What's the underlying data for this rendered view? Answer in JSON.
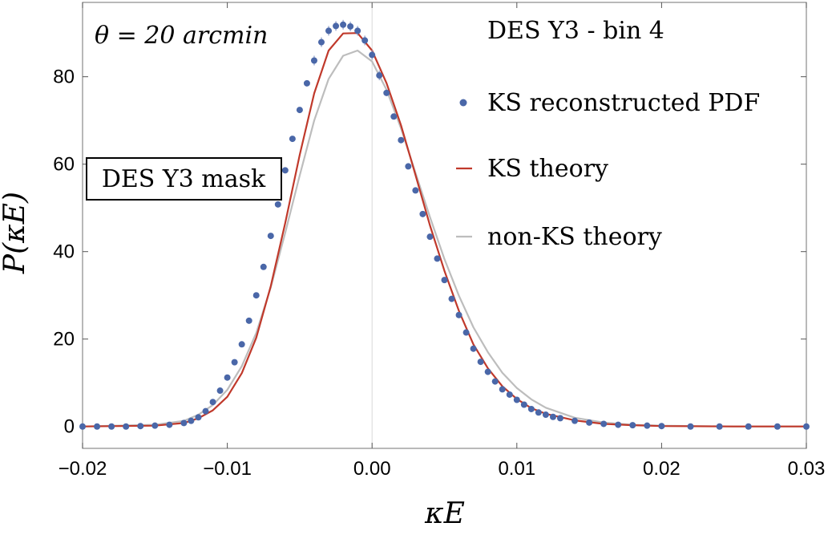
{
  "chart_data": {
    "type": "line",
    "xlabel": "κE",
    "ylabel": "P(κE)",
    "xlim": [
      -0.02,
      0.03
    ],
    "ylim": [
      -5,
      97
    ],
    "x_ticks": [
      -0.02,
      -0.01,
      0.0,
      0.01,
      0.02,
      0.03
    ],
    "x_tick_labels": [
      "−0.02",
      "−0.01",
      "0.00",
      "0.01",
      "0.02",
      "0.03"
    ],
    "y_ticks": [
      0,
      20,
      40,
      60,
      80
    ],
    "y_tick_labels": [
      "0",
      "20",
      "40",
      "60",
      "80"
    ],
    "grid": false,
    "vertical_reference_line_x": 0.0,
    "legend_position": "top-right",
    "annotations": {
      "theta": "θ = 20 arcmin",
      "title": "DES Y3 - bin 4",
      "mask_box": "DES Y3 mask"
    },
    "series": [
      {
        "name": "KS reconstructed PDF",
        "kind": "points",
        "color": "#4a67a8",
        "x": [
          -0.02,
          -0.019,
          -0.018,
          -0.017,
          -0.016,
          -0.015,
          -0.014,
          -0.013,
          -0.0125,
          -0.012,
          -0.0115,
          -0.011,
          -0.0105,
          -0.01,
          -0.0095,
          -0.009,
          -0.0085,
          -0.008,
          -0.0075,
          -0.007,
          -0.0065,
          -0.006,
          -0.0055,
          -0.005,
          -0.0045,
          -0.004,
          -0.0035,
          -0.003,
          -0.0025,
          -0.002,
          -0.0015,
          -0.001,
          -0.0005,
          0.0,
          0.0005,
          0.001,
          0.0015,
          0.002,
          0.0025,
          0.003,
          0.0035,
          0.004,
          0.0045,
          0.005,
          0.0055,
          0.006,
          0.0065,
          0.007,
          0.0075,
          0.008,
          0.0085,
          0.009,
          0.0095,
          0.01,
          0.0105,
          0.011,
          0.0115,
          0.012,
          0.0125,
          0.013,
          0.014,
          0.015,
          0.016,
          0.017,
          0.018,
          0.019,
          0.02,
          0.022,
          0.024,
          0.026,
          0.028,
          0.03
        ],
        "y": [
          0.0,
          0.0,
          0.0,
          0.0,
          0.1,
          0.2,
          0.4,
          0.8,
          1.3,
          2.1,
          3.5,
          5.6,
          8.2,
          11.2,
          14.7,
          18.8,
          24.2,
          30.0,
          36.5,
          43.6,
          50.8,
          58.6,
          65.8,
          72.4,
          78.5,
          83.7,
          87.9,
          90.5,
          91.6,
          91.9,
          91.5,
          90.5,
          88.3,
          85.0,
          80.3,
          76.3,
          70.9,
          65.5,
          59.5,
          54.0,
          48.6,
          43.4,
          38.4,
          33.5,
          29.2,
          25.5,
          21.5,
          17.8,
          14.8,
          12.5,
          10.3,
          8.5,
          7.3,
          6.1,
          5.0,
          4.0,
          3.2,
          2.7,
          2.2,
          1.9,
          1.3,
          0.9,
          0.6,
          0.4,
          0.3,
          0.2,
          0.1,
          0.0,
          0.0,
          0.0,
          0.0,
          0.0
        ]
      },
      {
        "name": "KS theory",
        "kind": "line",
        "color": "#c0392b",
        "x": [
          -0.02,
          -0.015,
          -0.013,
          -0.012,
          -0.011,
          -0.01,
          -0.009,
          -0.008,
          -0.007,
          -0.006,
          -0.005,
          -0.004,
          -0.003,
          -0.002,
          -0.001,
          0.0,
          0.001,
          0.002,
          0.003,
          0.004,
          0.005,
          0.006,
          0.007,
          0.008,
          0.009,
          0.01,
          0.011,
          0.012,
          0.014,
          0.016,
          0.018,
          0.02,
          0.025,
          0.03
        ],
        "y": [
          0.0,
          0.2,
          0.8,
          1.9,
          3.7,
          6.8,
          12.2,
          20.3,
          32.1,
          46.5,
          62.1,
          76.2,
          86.0,
          89.9,
          90.0,
          86.0,
          78.5,
          68.9,
          57.5,
          46.0,
          35.6,
          26.4,
          18.8,
          13.3,
          9.2,
          6.3,
          4.2,
          2.9,
          1.4,
          0.6,
          0.3,
          0.1,
          0.0,
          0.0
        ]
      },
      {
        "name": "non-KS theory",
        "kind": "line",
        "color": "#bdbdbd",
        "x": [
          -0.02,
          -0.015,
          -0.013,
          -0.012,
          -0.011,
          -0.01,
          -0.009,
          -0.008,
          -0.007,
          -0.006,
          -0.005,
          -0.004,
          -0.003,
          -0.002,
          -0.001,
          0.0,
          0.001,
          0.002,
          0.003,
          0.004,
          0.005,
          0.006,
          0.007,
          0.008,
          0.009,
          0.01,
          0.011,
          0.012,
          0.014,
          0.016,
          0.018,
          0.02,
          0.025,
          0.03
        ],
        "y": [
          0.0,
          0.4,
          1.3,
          2.7,
          4.9,
          8.4,
          13.8,
          21.4,
          31.8,
          44.3,
          57.4,
          70.0,
          79.5,
          84.8,
          86.0,
          83.5,
          77.0,
          68.2,
          58.0,
          47.9,
          38.3,
          29.9,
          22.7,
          17.0,
          12.3,
          8.8,
          6.2,
          4.3,
          2.0,
          0.9,
          0.4,
          0.2,
          0.0,
          0.0
        ]
      }
    ]
  }
}
